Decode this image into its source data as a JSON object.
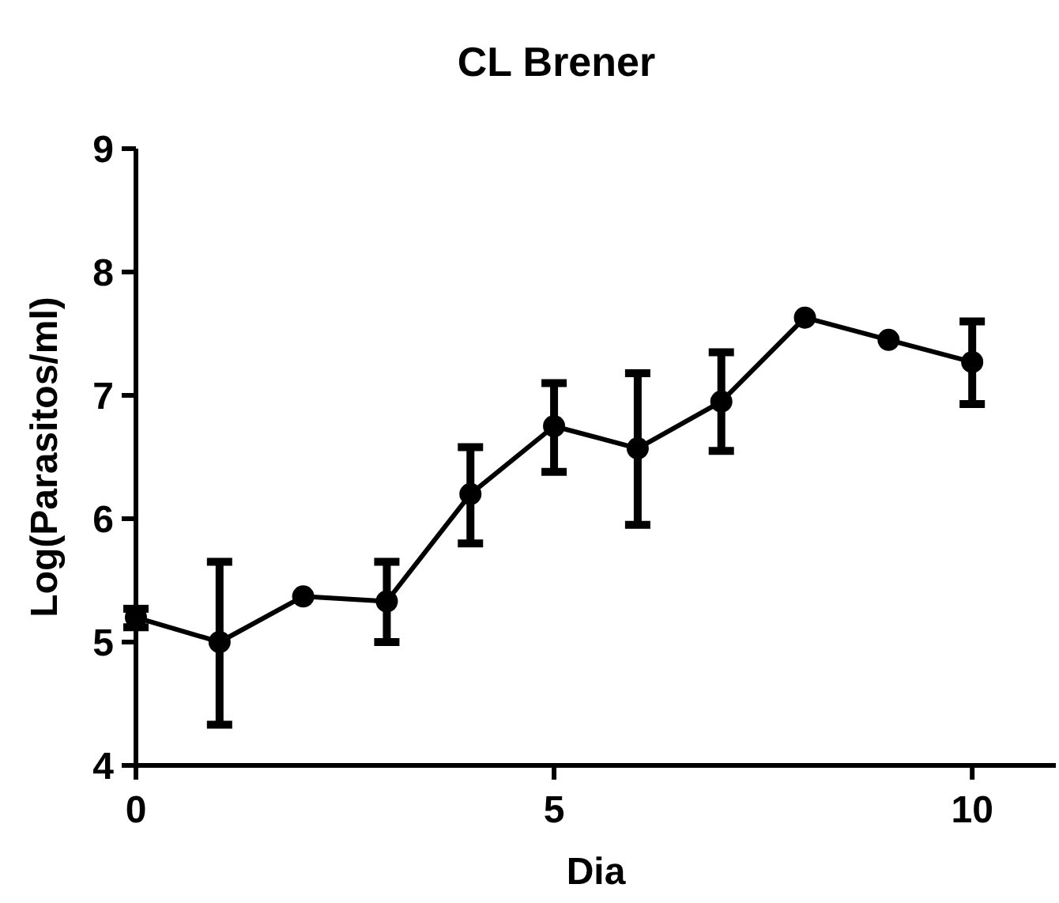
{
  "chart_data": {
    "type": "line",
    "title": "CL Brener",
    "xlabel": "Dia",
    "ylabel": "Log(Parasitos/ml)",
    "x": [
      0,
      1,
      2,
      3,
      4,
      5,
      6,
      7,
      8,
      9,
      10
    ],
    "series": [
      {
        "color": "#000000",
        "values": [
          5.2,
          5.0,
          5.37,
          5.33,
          6.2,
          6.75,
          6.57,
          6.95,
          7.63,
          7.45,
          7.27
        ],
        "errors": [
          [
            5.12,
            5.27
          ],
          [
            4.33,
            5.65
          ],
          null,
          [
            5.0,
            5.65
          ],
          [
            5.8,
            6.58
          ],
          [
            6.38,
            7.1
          ],
          [
            5.95,
            7.18
          ],
          [
            6.55,
            7.35
          ],
          null,
          null,
          [
            6.93,
            7.6
          ]
        ]
      }
    ],
    "xlim": [
      0,
      11
    ],
    "xticks": [
      0,
      5,
      10
    ],
    "ylim": [
      4,
      9
    ],
    "yticks": [
      4,
      5,
      6,
      7,
      8,
      9
    ],
    "marker": "circle",
    "line_style": "solid"
  }
}
